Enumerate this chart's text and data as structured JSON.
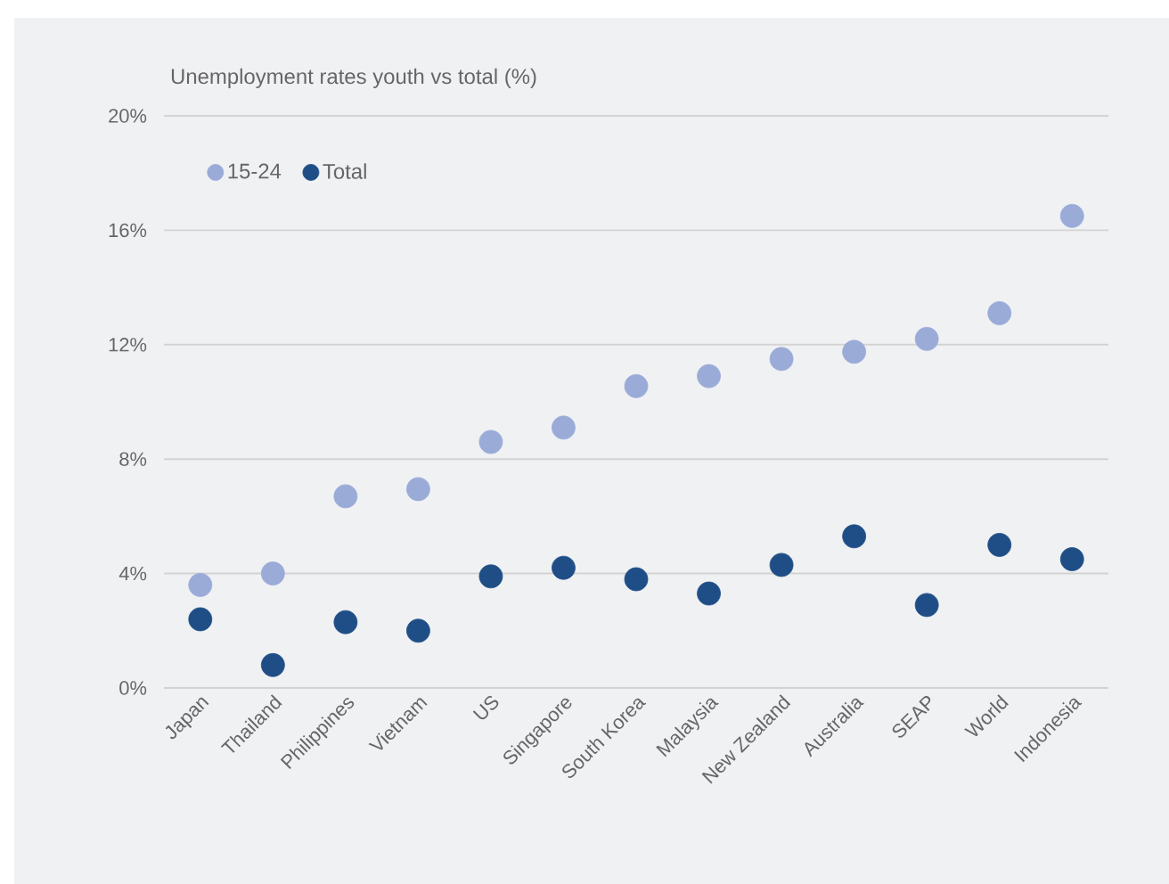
{
  "chart_data": {
    "type": "scatter",
    "title": "Unemployment rates youth vs total (%)",
    "categories": [
      "Japan",
      "Thailand",
      "Philippines",
      "Vietnam",
      "US",
      "Singapore",
      "South Korea",
      "Malaysia",
      "New Zealand",
      "Australia",
      "SEAP",
      "World",
      "Indonesia"
    ],
    "series": [
      {
        "name": "15-24",
        "color": "#9aabd8",
        "values": [
          3.6,
          4.0,
          6.7,
          6.95,
          8.6,
          9.1,
          10.55,
          10.9,
          11.5,
          11.75,
          12.2,
          13.1,
          16.5
        ]
      },
      {
        "name": "Total",
        "color": "#1f4e87",
        "values": [
          2.4,
          0.8,
          2.3,
          2.0,
          3.9,
          4.2,
          3.8,
          3.3,
          4.3,
          5.3,
          2.9,
          5.0,
          4.5
        ]
      }
    ],
    "ylim": [
      0,
      20
    ],
    "yticks": [
      {
        "value": 0,
        "label": "0%"
      },
      {
        "value": 4,
        "label": "4%"
      },
      {
        "value": 8,
        "label": "8%"
      },
      {
        "value": 12,
        "label": "12%"
      },
      {
        "value": 16,
        "label": "16%"
      },
      {
        "value": 20,
        "label": "20%"
      }
    ],
    "grid": "y",
    "legend": "top left"
  }
}
